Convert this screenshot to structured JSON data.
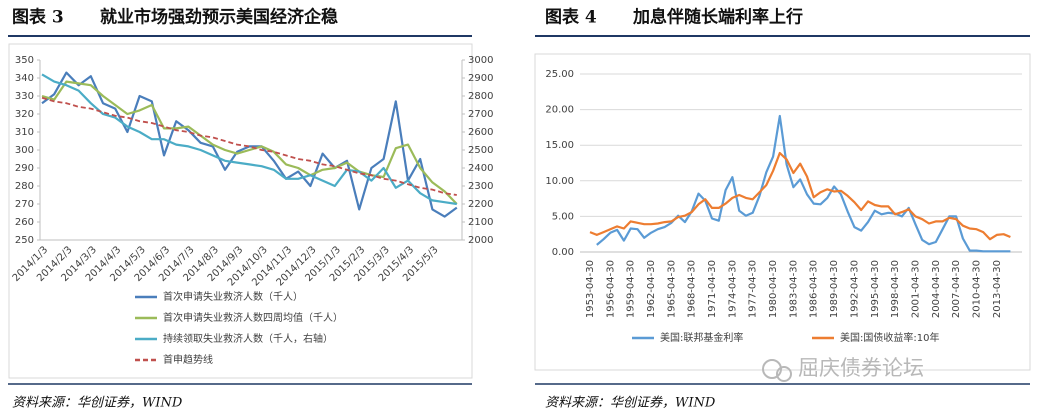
{
  "chart_data": [
    {
      "type": "line",
      "figure_label": "图表 3",
      "title": "就业市场强劲预示美国经济企稳",
      "source": "资料来源：华创证券，WIND",
      "categories": [
        "2014/1/3",
        null,
        "2014/2/3",
        null,
        "2014/3/3",
        null,
        "2014/4/3",
        null,
        "2014/5/3",
        null,
        "2014/6/3",
        null,
        "2014/7/3",
        null,
        "2014/8/3",
        null,
        "2014/9/3",
        null,
        "2014/10/3",
        null,
        "2014/11/3",
        null,
        "2014/12/3",
        null,
        "2015/1/3",
        null,
        "2015/2/3",
        null,
        "2015/3/3",
        null,
        "2015/4/3",
        null,
        "2015/5/3",
        null,
        null
      ],
      "ylim": [
        250,
        350
      ],
      "yticks": [
        250,
        260,
        270,
        280,
        290,
        300,
        310,
        320,
        330,
        340,
        350
      ],
      "y2lim": [
        2000,
        3000
      ],
      "y2ticks": [
        2000,
        2100,
        2200,
        2300,
        2400,
        2500,
        2600,
        2700,
        2800,
        2900,
        3000
      ],
      "grid": false,
      "legend": "bottom",
      "series": [
        {
          "name": "首次申请失业救济人数（千人）",
          "color": "#4a7ebb",
          "values": [
            326,
            331,
            343,
            336,
            341,
            326,
            323,
            310,
            330,
            327,
            297,
            316,
            311,
            304,
            302,
            289,
            299,
            302,
            302,
            294,
            284,
            288,
            280,
            298,
            290,
            294,
            267,
            290,
            295,
            327,
            283,
            295,
            267,
            263,
            268
          ]
        },
        {
          "name": "首次申请失业救济人数四周均值（千人）",
          "color": "#9bbb59",
          "values": [
            330,
            328,
            338,
            337,
            336,
            330,
            325,
            320,
            322,
            325,
            312,
            312,
            313,
            308,
            303,
            300,
            298,
            300,
            302,
            299,
            292,
            290,
            286,
            289,
            290,
            293,
            288,
            286,
            285,
            301,
            303,
            290,
            282,
            277,
            270
          ]
        },
        {
          "name": "持续领取失业救济人数（千人，右轴）",
          "color": "#4bacc6",
          "axis": "y2",
          "values": [
            2920,
            2880,
            2860,
            2830,
            2760,
            2700,
            2680,
            2630,
            2600,
            2560,
            2560,
            2530,
            2520,
            2500,
            2470,
            2440,
            2430,
            2420,
            2410,
            2390,
            2340,
            2340,
            2360,
            2330,
            2300,
            2390,
            2380,
            2330,
            2400,
            2290,
            2330,
            2260,
            2220,
            2210,
            2200
          ]
        },
        {
          "name": "首申趋势线",
          "color": "#c0504d",
          "dashed": true,
          "values": [
            329,
            327,
            326,
            324,
            323,
            321,
            319,
            318,
            316,
            315,
            313,
            311,
            310,
            308,
            307,
            305,
            303,
            302,
            300,
            299,
            297,
            295,
            294,
            292,
            291,
            289,
            287,
            286,
            284,
            283,
            281,
            279,
            278,
            276,
            275
          ]
        }
      ]
    },
    {
      "type": "line",
      "figure_label": "图表 4",
      "title": "加息伴随长端利率上行",
      "source": "资料来源：华创证券，WIND",
      "categories": [
        "1953-04-30",
        null,
        null,
        "1956-04-30",
        null,
        null,
        "1959-04-30",
        null,
        null,
        "1962-04-30",
        null,
        null,
        "1965-04-30",
        null,
        null,
        "1968-04-30",
        null,
        null,
        "1971-04-30",
        null,
        null,
        "1974-04-30",
        null,
        null,
        "1977-04-30",
        null,
        null,
        "1980-04-30",
        null,
        null,
        "1983-04-30",
        null,
        null,
        "1986-04-30",
        null,
        null,
        "1989-04-30",
        null,
        null,
        "1992-04-30",
        null,
        null,
        "1995-04-30",
        null,
        null,
        "1998-04-30",
        null,
        null,
        "2001-04-30",
        null,
        null,
        "2004-04-30",
        null,
        null,
        "2007-04-30",
        null,
        null,
        "2010-04-30",
        null,
        null,
        "2013-04-30",
        null,
        null
      ],
      "ylim": [
        0,
        25
      ],
      "yticks": [
        {
          "value": 0,
          "label": "0.00"
        },
        {
          "value": 5,
          "label": "5.00"
        },
        {
          "value": 10,
          "label": "10.00"
        },
        {
          "value": 15,
          "label": "15.00"
        },
        {
          "value": 20,
          "label": "20.00"
        },
        {
          "value": 25,
          "label": "25.00"
        }
      ],
      "grid": true,
      "legend": "bottom",
      "series": [
        {
          "name": "美国:联邦基金利率",
          "color": "#5b9bd5",
          "values": [
            null,
            1.0,
            1.8,
            2.7,
            3.1,
            1.6,
            3.3,
            3.2,
            2.0,
            2.7,
            3.2,
            3.5,
            4.1,
            5.1,
            4.2,
            5.7,
            8.2,
            7.2,
            4.7,
            4.4,
            8.7,
            10.5,
            5.8,
            5.1,
            5.5,
            7.9,
            11.2,
            13.4,
            19.1,
            12.3,
            9.1,
            10.2,
            8.1,
            6.8,
            6.7,
            7.6,
            9.2,
            8.1,
            5.7,
            3.5,
            3.0,
            4.2,
            5.8,
            5.3,
            5.5,
            5.4,
            5.0,
            6.2,
            3.9,
            1.7,
            1.1,
            1.4,
            3.2,
            5.0,
            5.0,
            1.9,
            0.2,
            0.2,
            0.1,
            0.1,
            0.1,
            0.1,
            0.1
          ]
        },
        {
          "name": "美国:国债收益率:10年",
          "color": "#ed7d31",
          "values": [
            2.8,
            2.4,
            2.8,
            3.2,
            3.6,
            3.3,
            4.3,
            4.1,
            3.9,
            3.9,
            4.0,
            4.2,
            4.3,
            4.9,
            5.1,
            5.6,
            6.7,
            7.4,
            6.2,
            6.2,
            6.8,
            7.6,
            8.0,
            7.6,
            7.4,
            8.4,
            9.4,
            11.4,
            13.9,
            13.0,
            11.1,
            12.4,
            10.6,
            7.7,
            8.4,
            8.8,
            8.5,
            8.6,
            7.9,
            7.0,
            5.9,
            7.1,
            6.6,
            6.4,
            6.4,
            5.3,
            5.6,
            6.0,
            5.0,
            4.6,
            4.0,
            4.3,
            4.3,
            4.8,
            4.6,
            3.7,
            3.3,
            3.2,
            2.8,
            1.8,
            2.4,
            2.5,
            2.1
          ]
        }
      ]
    }
  ],
  "watermark": "屈庆债券论坛"
}
